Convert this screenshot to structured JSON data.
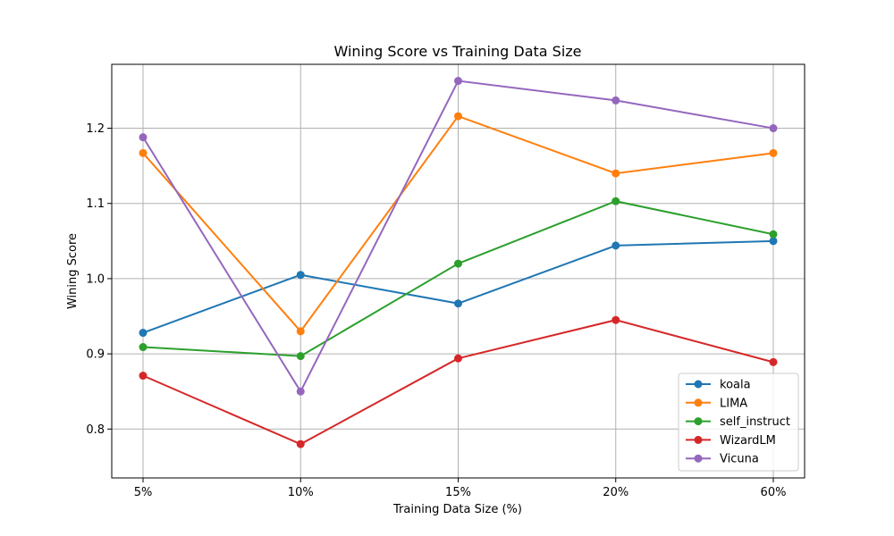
{
  "chart_data": {
    "type": "line",
    "title": "Wining Score vs Training Data Size",
    "xlabel": "Training Data Size (%)",
    "ylabel": "Wining Score",
    "categories": [
      "5%",
      "10%",
      "15%",
      "20%",
      "60%"
    ],
    "ylim": [
      0.735,
      1.285
    ],
    "yticks": [
      0.8,
      0.9,
      1.0,
      1.1,
      1.2
    ],
    "ytick_labels": [
      "0.8",
      "0.9",
      "1.0",
      "1.1",
      "1.2"
    ],
    "grid": true,
    "legend_position": "bottom-right",
    "series": [
      {
        "name": "koala",
        "color": "#1f77b4",
        "values": [
          0.928,
          1.005,
          0.967,
          1.044,
          1.05
        ]
      },
      {
        "name": "LIMA",
        "color": "#ff7f0e",
        "values": [
          1.167,
          0.93,
          1.216,
          1.14,
          1.167
        ]
      },
      {
        "name": "self_instruct",
        "color": "#2ca02c",
        "values": [
          0.909,
          0.897,
          1.02,
          1.103,
          1.059
        ]
      },
      {
        "name": "WizardLM",
        "color": "#d62728",
        "values": [
          0.871,
          0.78,
          0.894,
          0.945,
          0.889
        ]
      },
      {
        "name": "Vicuna",
        "color": "#9467bd",
        "values": [
          1.188,
          0.85,
          1.263,
          1.237,
          1.2
        ]
      }
    ]
  }
}
